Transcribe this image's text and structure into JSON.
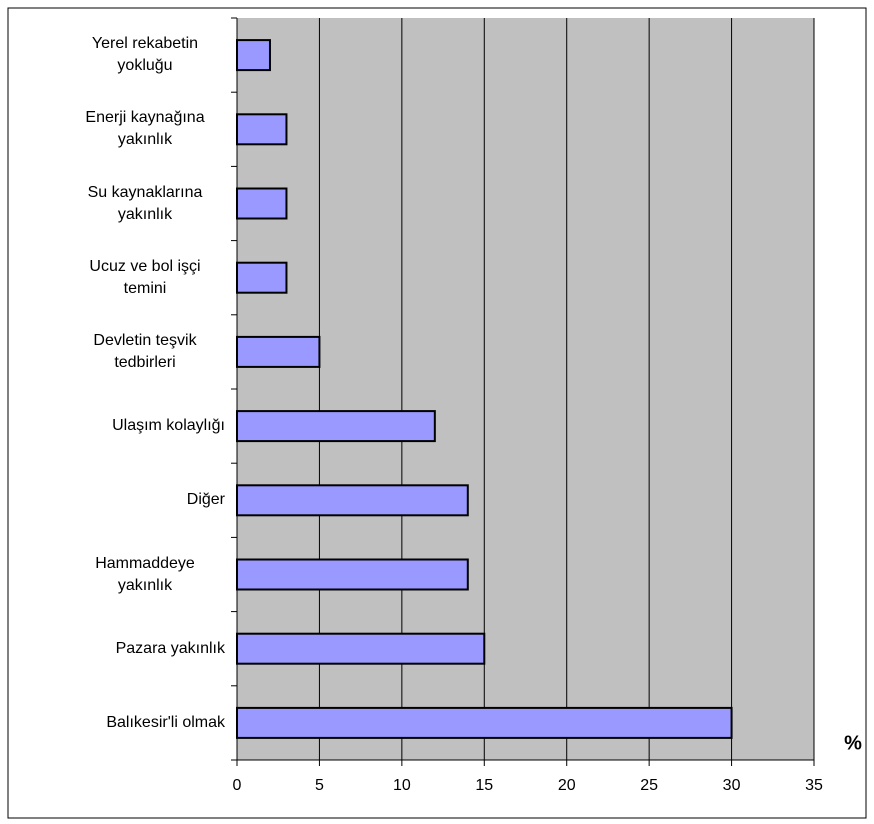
{
  "chart_data": {
    "type": "bar",
    "orientation": "horizontal",
    "categories": [
      "Yerel rekabetin\nyokluğu",
      "Enerji kaynağına\nyakınlık",
      "Su kaynaklarına\nyakınlık",
      "Ucuz ve bol işçi\ntemini",
      "Devletin teşvik\ntedbirleri",
      "Ulaşım kolaylığı",
      "Diğer",
      "Hammaddeye\nyakınlık",
      "Pazara yakınlık",
      "Balıkesir'li olmak"
    ],
    "values": [
      2,
      3,
      3,
      3,
      5,
      12,
      14,
      14,
      15,
      30
    ],
    "color": "#9999ff",
    "plot_background": "#c0c0c0",
    "x_label": "%",
    "xlim": [
      0,
      35
    ],
    "xticks": [
      0,
      5,
      10,
      15,
      20,
      25,
      30,
      35
    ],
    "grid": true
  }
}
